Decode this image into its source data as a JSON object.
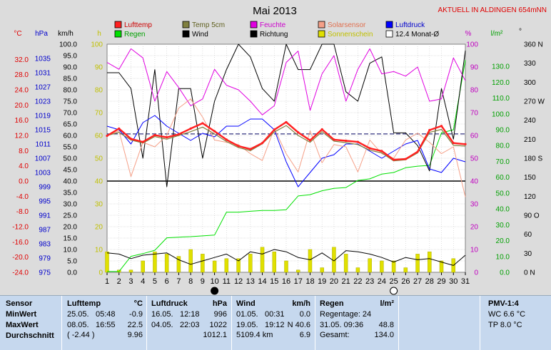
{
  "header": {
    "title": "Mai 2013",
    "station": "AKTUELL IN ALDINGEN 654mNN"
  },
  "legend": [
    {
      "label": "Lufttemp",
      "color": "#ff2020"
    },
    {
      "label": "Temp 5cm",
      "color": "#808040"
    },
    {
      "label": "Feuchte",
      "color": "#e000e0"
    },
    {
      "label": "Solarsensor",
      "color": "#f5a088"
    },
    {
      "label": "Luftdruck",
      "color": "#0000ff"
    },
    {
      "label": "Regen",
      "color": "#00e000"
    },
    {
      "label": "Wind",
      "color": "#000000"
    },
    {
      "label": "Richtung",
      "color": "#000000"
    },
    {
      "label": "Sonnenschein",
      "color": "#e0e000"
    },
    {
      "label": "12.4 Monat-Ø",
      "color": "#ffffff"
    }
  ],
  "axis_units": {
    "temp": "°C",
    "pressure": "hPa",
    "wind": "km/h",
    "sun": "h",
    "humidity": "%",
    "rain": "l/m²",
    "direction": "°"
  },
  "chart_data": {
    "type": "line",
    "title": "Mai 2013",
    "x": [
      1,
      2,
      3,
      4,
      5,
      6,
      7,
      8,
      9,
      10,
      11,
      12,
      13,
      14,
      15,
      16,
      17,
      18,
      19,
      20,
      21,
      22,
      23,
      24,
      25,
      26,
      27,
      28,
      29,
      30,
      31
    ],
    "xlim": [
      1,
      31
    ],
    "month_average_temp": 12.4,
    "axes": {
      "temp": {
        "range": [
          -24,
          36
        ],
        "ticks": [
          "32.0",
          "28.0",
          "24.0",
          "20.0",
          "16.0",
          "12.0",
          "8.0",
          "4.0",
          "0.0",
          "-4.0",
          "-8.0",
          "-12.0",
          "-16.0",
          "-20.0",
          "-24.0"
        ]
      },
      "pressure": {
        "range": [
          975,
          1039
        ],
        "ticks": [
          "1035",
          "1031",
          "1027",
          "1023",
          "1019",
          "1015",
          "1011",
          "1007",
          "1003",
          "999",
          "995",
          "991",
          "987",
          "983",
          "979",
          "975"
        ]
      },
      "wind": {
        "range": [
          0,
          100
        ],
        "ticks": [
          "100.0",
          "95.0",
          "90.0",
          "85.0",
          "80.0",
          "75.0",
          "70.0",
          "65.0",
          "60.0",
          "55.0",
          "50.0",
          "45.0",
          "40.0",
          "35.0",
          "30.0",
          "25.0",
          "20.0",
          "15.0",
          "10.0",
          "5.0",
          "0.0"
        ]
      },
      "sun": {
        "range": [
          0,
          100
        ],
        "ticks": [
          "100",
          "90",
          "80",
          "70",
          "60",
          "50",
          "40",
          "30",
          "20",
          "10",
          "0"
        ]
      },
      "humidity": {
        "range": [
          0,
          100
        ],
        "ticks": [
          "100",
          "90",
          "80",
          "70",
          "60",
          "50",
          "40",
          "30",
          "20",
          "10",
          "0"
        ]
      },
      "rain": {
        "range": [
          0,
          144
        ],
        "ticks": [
          "130.0",
          "120.0",
          "110.0",
          "100.0",
          "90.0",
          "80.0",
          "70.0",
          "60.0",
          "50.0",
          "40.0",
          "30.0",
          "20.0",
          "10.0",
          "0.0"
        ]
      },
      "direction": {
        "range": [
          0,
          360
        ],
        "ticks": [
          "360 N",
          "330",
          "300",
          "270 W",
          "240",
          "210",
          "180 S",
          "150",
          "120",
          "90 O",
          "60",
          "30",
          "0 N"
        ]
      }
    },
    "series": [
      {
        "name": "Lufttemp",
        "color": "#ff2020",
        "axis": "temp",
        "values": [
          11.9,
          13.8,
          11.1,
          10.3,
          12.1,
          11.5,
          12.3,
          13.8,
          15.2,
          13.1,
          10.9,
          9.2,
          8.4,
          10.0,
          13.5,
          15.5,
          12.8,
          10.7,
          13.6,
          10.9,
          10.6,
          10.3,
          8.6,
          7.9,
          5.6,
          5.8,
          7.7,
          13.4,
          14.5,
          10.0,
          9.7
        ]
      },
      {
        "name": "Temp 5cm",
        "color": "#808040",
        "axis": "temp",
        "values": [
          12.0,
          12.8,
          10.8,
          10.0,
          11.7,
          11.0,
          12.0,
          13.0,
          14.2,
          12.4,
          10.4,
          8.8,
          8.0,
          9.8,
          12.9,
          14.6,
          12.0,
          10.2,
          13.0,
          10.5,
          10.1,
          9.6,
          8.1,
          7.4,
          5.3,
          5.6,
          7.4,
          12.8,
          13.6,
          9.4,
          9.2
        ]
      },
      {
        "name": "Feuchte",
        "color": "#e000e0",
        "axis": "humidity",
        "values": [
          92,
          89,
          98,
          94,
          75,
          88,
          81,
          73,
          76,
          89,
          82,
          80,
          75,
          69,
          73,
          92,
          97,
          71,
          87,
          95,
          75,
          89,
          98,
          87,
          88,
          86,
          90,
          75,
          76,
          94,
          84
        ]
      },
      {
        "name": "Solarsensor",
        "color": "#f5a088",
        "axis": "humidity",
        "values": [
          60,
          62,
          42,
          57,
          55,
          60,
          72,
          76,
          68,
          58,
          57,
          56,
          52,
          49,
          63,
          52,
          44,
          62,
          48,
          56,
          55,
          44,
          58,
          52,
          50,
          58,
          61,
          57,
          52,
          55,
          33
        ]
      },
      {
        "name": "Luftdruck",
        "color": "#0000ff",
        "axis": "pressure",
        "values": [
          1016,
          1015,
          1011,
          1017,
          1019,
          1016,
          1014,
          1012,
          1014,
          1013,
          1016,
          1016,
          1018,
          1018,
          1015,
          1006,
          999,
          1003,
          1007,
          1008,
          1011,
          1011,
          1009,
          1007,
          1009,
          1011,
          1012,
          1004,
          1003,
          1007,
          1006
        ]
      },
      {
        "name": "Regen",
        "color": "#00e000",
        "axis": "rain",
        "values": [
          0.5,
          0.5,
          10.1,
          11.8,
          13.9,
          21.8,
          22.2,
          22.5,
          23.0,
          23.5,
          38.0,
          38.0,
          38.5,
          39.0,
          39.0,
          39.5,
          48.2,
          49.0,
          51.5,
          53.0,
          53.5,
          58.0,
          59.0,
          62.0,
          63.0,
          66.0,
          67.0,
          67.5,
          88.0,
          90.0,
          134.0
        ]
      },
      {
        "name": "Wind",
        "color": "#000000",
        "axis": "wind",
        "values": [
          8.5,
          8.0,
          6.0,
          7.5,
          8.0,
          8.5,
          5.5,
          3.5,
          5.0,
          6.5,
          8.0,
          5.0,
          9.0,
          8.0,
          10.0,
          9.0,
          6.5,
          5.5,
          8.5,
          5.0,
          9.5,
          9.0,
          8.0,
          6.5,
          4.5,
          6.5,
          5.5,
          6.0,
          4.5,
          3.0,
          7.5
        ]
      },
      {
        "name": "Richtung",
        "color": "#000000",
        "axis": "direction",
        "values": [
          315,
          315,
          290,
          180,
          320,
          135,
          290,
          290,
          180,
          270,
          320,
          360,
          340,
          290,
          270,
          360,
          320,
          320,
          360,
          360,
          285,
          270,
          330,
          340,
          220,
          220,
          200,
          160,
          290,
          210,
          350
        ]
      },
      {
        "name": "Sonnenschein",
        "color": "#e0e000",
        "axis": "sun",
        "type": "bar",
        "values": [
          9,
          1,
          1,
          5,
          9,
          8,
          7,
          10,
          8,
          5,
          6,
          6,
          8,
          11,
          9,
          5,
          1,
          10,
          2,
          11,
          8,
          2,
          6,
          5,
          5,
          2,
          8,
          9,
          5,
          6,
          0
        ]
      }
    ]
  },
  "stats": {
    "sensor": {
      "title": "Sensor",
      "rows": [
        "MinWert",
        "MaxWert",
        "Durchschnitt"
      ]
    },
    "lufttemp": {
      "title": "Lufttemp",
      "unit": "°C",
      "rows": [
        {
          "date": "25.05.",
          "time": "05:48",
          "value": "-0.9"
        },
        {
          "date": "08.05.",
          "time": "16:55",
          "value": "22.5"
        },
        {
          "date": "( -2.44 )",
          "time": "",
          "value": "9.96"
        }
      ]
    },
    "luftdruck": {
      "title": "Luftdruck",
      "unit": "hPa",
      "rows": [
        {
          "date": "16.05.",
          "time": "12:18",
          "value": "996"
        },
        {
          "date": "04.05.",
          "time": "22:03",
          "value": "1022"
        },
        {
          "date": "",
          "time": "",
          "value": "1012.1"
        }
      ]
    },
    "wind": {
      "title": "Wind",
      "unit": "km/h",
      "rows": [
        {
          "date": "01.05.",
          "time": "00:31",
          "value": "0.0"
        },
        {
          "date": "19.05.",
          "time": "19:12",
          "value": "N 40.6"
        },
        {
          "date": "5109.4 km",
          "time": "",
          "value": "6.9"
        }
      ]
    },
    "regen": {
      "title": "Regen",
      "unit": "l/m²",
      "rows": [
        {
          "label": "Regentage: 24",
          "value": ""
        },
        {
          "label": "31.05.  09:36",
          "value": "48.8"
        },
        {
          "label": "Gesamt:",
          "value": "134.0"
        }
      ]
    },
    "pmv": {
      "title": "PMV-1:4",
      "rows": [
        "WC 6.6 °C",
        "TP 8.0 °C"
      ]
    }
  },
  "moon_days": {
    "new": 10,
    "full": 25
  }
}
